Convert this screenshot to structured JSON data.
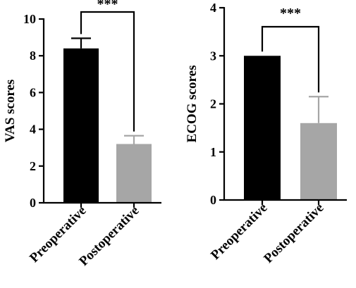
{
  "chart_data": [
    {
      "type": "bar",
      "categories": [
        "Preoperative",
        "Postoperative"
      ],
      "values": [
        8.4,
        3.2
      ],
      "errors": [
        0.55,
        0.45
      ],
      "colors": [
        "#000000",
        "#a6a6a6"
      ],
      "ylabel": "VAS scores",
      "xlabel": "",
      "title": "",
      "ylim": [
        0,
        10
      ],
      "yticks": [
        0,
        2,
        4,
        6,
        8,
        10
      ],
      "significance": "***"
    },
    {
      "type": "bar",
      "categories": [
        "Preoperative",
        "Postoperative"
      ],
      "values": [
        3.0,
        1.6
      ],
      "errors": [
        0.0,
        0.55
      ],
      "colors": [
        "#000000",
        "#a6a6a6"
      ],
      "ylabel": "ECOG scores",
      "xlabel": "",
      "title": "",
      "ylim": [
        0,
        4
      ],
      "yticks": [
        0,
        1,
        2,
        3,
        4
      ],
      "significance": "***"
    }
  ]
}
